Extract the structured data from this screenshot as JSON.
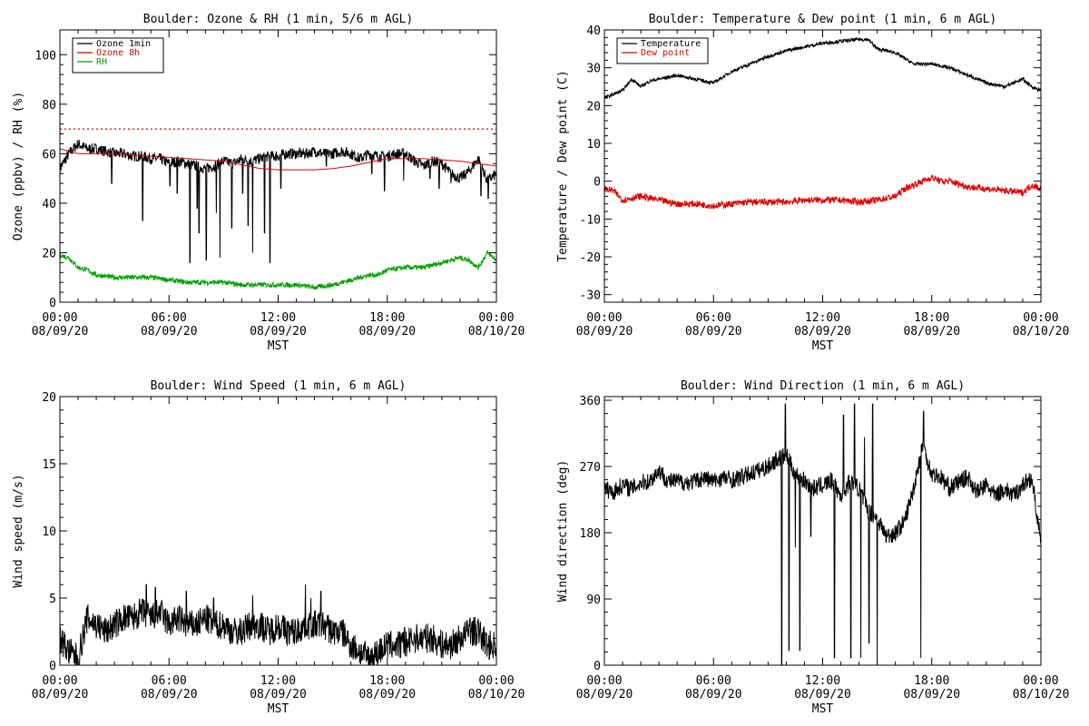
{
  "colors": {
    "black": "#000000",
    "red": "#dd0000",
    "green": "#00a000"
  },
  "x_axis_common": {
    "tick_labels": [
      [
        "00:00",
        "08/09/20"
      ],
      [
        "06:00",
        "08/09/20"
      ],
      [
        "12:00",
        "08/09/20"
      ],
      [
        "18:00",
        "08/09/20"
      ],
      [
        "00:00",
        "08/10/20"
      ]
    ],
    "tick_hours": [
      0,
      6,
      12,
      18,
      24
    ],
    "xlim": [
      0,
      24
    ],
    "xlabel": "MST"
  },
  "chart_data": [
    {
      "id": "ozone-rh",
      "type": "line",
      "title": "Boulder: Ozone & RH (1 min, 5/6 m AGL)",
      "ylabel": "Ozone (ppbv) / RH (%)",
      "xlabel": "MST",
      "ylim": [
        0,
        110
      ],
      "yticks": [
        0,
        20,
        40,
        60,
        80,
        100
      ],
      "legend_position": "top-left",
      "reference_line": {
        "y": 70,
        "style": "dotted",
        "color": "#dd0000"
      },
      "series": [
        {
          "name": "Ozone 1min",
          "color": "#000000",
          "x": [
            0,
            0.5,
            1,
            1.5,
            2,
            2.5,
            3,
            3.5,
            4,
            4.5,
            5,
            5.5,
            6,
            6.5,
            7,
            7.5,
            8,
            8.5,
            9,
            9.5,
            10,
            10.5,
            11,
            11.5,
            12,
            12.5,
            13,
            13.5,
            14,
            14.5,
            15,
            15.5,
            16,
            16.5,
            17,
            17.5,
            18,
            18.5,
            19,
            19.5,
            20,
            20.5,
            21,
            21.5,
            22,
            22.5,
            23,
            23.5,
            24
          ],
          "y": [
            54,
            60,
            64,
            62,
            62,
            61,
            60,
            60,
            59,
            59,
            58,
            58,
            56,
            57,
            56,
            55,
            54,
            55,
            57,
            56,
            58,
            57,
            58,
            59,
            59,
            60,
            60,
            60,
            61,
            60,
            60,
            61,
            60,
            58,
            60,
            59,
            59,
            60,
            60,
            57,
            55,
            57,
            56,
            52,
            50,
            53,
            58,
            49,
            52
          ]
        },
        {
          "name": "Ozone 8h",
          "color": "#dd0000",
          "x": [
            0,
            1,
            2,
            3,
            4,
            5,
            6,
            7,
            8,
            9,
            10,
            11,
            12,
            13,
            14,
            15,
            16,
            17,
            18,
            19,
            20,
            21,
            22,
            23,
            24
          ],
          "y": [
            62,
            60,
            60,
            60,
            59.5,
            59,
            58.5,
            58,
            57.5,
            57,
            55.5,
            54,
            53.5,
            53.5,
            53.5,
            54,
            55,
            56.5,
            58,
            58,
            58,
            57.5,
            57,
            56,
            55
          ]
        },
        {
          "name": "RH",
          "color": "#00a000",
          "x": [
            0,
            0.5,
            1,
            1.5,
            2,
            3,
            4,
            5,
            6,
            7,
            8,
            9,
            10,
            11,
            12,
            13,
            14,
            15,
            16,
            17,
            17.5,
            18,
            19,
            20,
            21,
            22,
            22.5,
            23,
            23.5,
            24
          ],
          "y": [
            19,
            18,
            14,
            13,
            11,
            10,
            10,
            10,
            9,
            8,
            8,
            8,
            7,
            7,
            7,
            7,
            6,
            7,
            9,
            11,
            11,
            13,
            14,
            14,
            16,
            18,
            17,
            14,
            20,
            17
          ]
        }
      ],
      "spikes": [
        {
          "name": "Ozone 1min",
          "x": [
            2.85,
            4.55,
            6.05,
            6.45,
            7.15,
            7.55,
            7.65,
            8.05,
            8.6,
            8.8,
            9.45,
            10.05,
            10.35,
            10.6,
            11.25,
            11.55,
            12.15,
            14.65,
            17.15,
            17.85,
            18.9,
            20.35,
            20.85,
            21.5,
            23.15,
            23.55
          ],
          "y": [
            48,
            33,
            47,
            44,
            16,
            38,
            28,
            17,
            36,
            18,
            30,
            44,
            31,
            20,
            28,
            16,
            46,
            55,
            52,
            45,
            49,
            50,
            46,
            48,
            43,
            42
          ]
        }
      ]
    },
    {
      "id": "temp-dew",
      "type": "line",
      "title": "Boulder: Temperature & Dew point (1 min, 6 m AGL)",
      "ylabel": "Temperature / Dew point (C)",
      "xlabel": "MST",
      "ylim": [
        -32,
        40
      ],
      "yticks": [
        -30,
        -20,
        -10,
        0,
        10,
        20,
        30,
        40
      ],
      "legend_position": "top-left",
      "series": [
        {
          "name": "Temperature",
          "color": "#000000",
          "x": [
            0,
            0.5,
            1,
            1.5,
            2,
            2.5,
            3,
            4,
            5,
            6,
            7,
            8,
            9,
            10,
            11,
            12,
            13,
            14,
            14.5,
            15,
            16,
            17,
            18,
            19,
            20,
            21,
            22,
            22.5,
            23,
            23.5,
            24
          ],
          "y": [
            22,
            23,
            24,
            27,
            25,
            26.5,
            27,
            28,
            27,
            26,
            29,
            31,
            33,
            34.5,
            35.5,
            36.5,
            37,
            37.5,
            37.5,
            35,
            34,
            31,
            31,
            30,
            28,
            26,
            25,
            26,
            27,
            25,
            24
          ]
        },
        {
          "name": "Dew point",
          "color": "#dd0000",
          "x": [
            0,
            0.5,
            1,
            2,
            3,
            4,
            5,
            6,
            7,
            8,
            9,
            10,
            11,
            12,
            13,
            14,
            15,
            16,
            16.5,
            17,
            17.5,
            18,
            18.5,
            19,
            20,
            21,
            22,
            23,
            23.5,
            24
          ],
          "y": [
            -2,
            -2.5,
            -5,
            -4,
            -5,
            -6,
            -6,
            -6.5,
            -6,
            -5.5,
            -5.5,
            -5.5,
            -5,
            -5,
            -5,
            -5.5,
            -5,
            -4,
            -2,
            -1,
            0,
            1,
            0,
            0,
            -1.5,
            -2,
            -2.5,
            -3,
            -1,
            -2
          ]
        }
      ]
    },
    {
      "id": "wind-speed",
      "type": "line",
      "title": "Boulder: Wind Speed (1 min, 6 m AGL)",
      "ylabel": "Wind speed (m/s)",
      "xlabel": "MST",
      "ylim": [
        0,
        20
      ],
      "yticks": [
        0,
        5,
        10,
        15,
        20
      ],
      "series": [
        {
          "name": "",
          "color": "#000000",
          "x": [
            0,
            0.5,
            1,
            1.25,
            1.5,
            2,
            2.5,
            3,
            3.5,
            4,
            4.5,
            5,
            5.5,
            6,
            6.5,
            7,
            7.5,
            8,
            8.5,
            9,
            9.5,
            10,
            10.5,
            11,
            11.5,
            12,
            12.5,
            13,
            13.5,
            14,
            14.5,
            15,
            15.5,
            16,
            16.5,
            17,
            17.5,
            18,
            18.5,
            19,
            19.5,
            20,
            20.5,
            21,
            21.5,
            22,
            22.5,
            23,
            23.5,
            24
          ],
          "y": [
            2,
            1,
            0.5,
            2,
            3.5,
            3,
            2.5,
            3,
            3.5,
            3.5,
            4,
            3.5,
            4,
            3,
            3.5,
            3,
            3,
            3.5,
            3,
            3,
            2.5,
            2.5,
            3,
            3,
            2.5,
            3,
            2.5,
            2.5,
            3,
            3,
            3,
            2.5,
            2.5,
            1.5,
            1,
            0.5,
            1,
            1.5,
            1.5,
            1.5,
            2,
            2,
            2,
            1.5,
            1.5,
            2,
            2.5,
            2.5,
            1.5,
            1.5
          ]
        }
      ],
      "spikes": [
        {
          "name": "wind speed",
          "x": [
            1.05,
            4.75,
            5.25,
            6.95,
            8.45,
            10.6,
            13.5,
            13.8,
            14.35,
            17.5,
            18.95,
            22.55
          ],
          "y": [
            0,
            6,
            5.8,
            5.5,
            5,
            5.2,
            6,
            5,
            5.5,
            0.2,
            2.8,
            3.5
          ]
        }
      ]
    },
    {
      "id": "wind-direction",
      "type": "line",
      "title": "Boulder: Wind Direction (1 min, 6 m AGL)",
      "ylabel": "Wind direction (deg)",
      "xlabel": "MST",
      "ylim": [
        0,
        365
      ],
      "yticks": [
        0,
        90,
        180,
        270,
        360
      ],
      "series": [
        {
          "name": "",
          "color": "#000000",
          "x": [
            0,
            0.5,
            1,
            1.5,
            2,
            2.5,
            3,
            3.5,
            4,
            4.5,
            5,
            5.5,
            6,
            6.5,
            7,
            7.5,
            8,
            8.5,
            9,
            9.5,
            10,
            10.5,
            11,
            11.5,
            12,
            12.5,
            13,
            13.5,
            14,
            14.5,
            15,
            15.5,
            16,
            16.5,
            17,
            17.5,
            18,
            18.5,
            19,
            19.5,
            20,
            20.5,
            21,
            21.5,
            22,
            22.5,
            23,
            23.5,
            24
          ],
          "y": [
            240,
            235,
            245,
            240,
            248,
            250,
            265,
            250,
            250,
            248,
            250,
            255,
            250,
            255,
            252,
            255,
            260,
            265,
            270,
            280,
            285,
            260,
            250,
            240,
            245,
            250,
            230,
            250,
            240,
            210,
            200,
            175,
            180,
            195,
            240,
            300,
            260,
            255,
            240,
            250,
            255,
            235,
            245,
            230,
            240,
            230,
            245,
            255,
            165
          ]
        }
      ],
      "spikes": [
        {
          "name": "wind direction",
          "x": [
            9.75,
            9.95,
            10.15,
            10.5,
            10.75,
            11.35,
            12.65,
            13.15,
            13.55,
            13.75,
            14.1,
            14.3,
            14.55,
            14.75,
            15,
            17.4,
            17.55
          ],
          "y": [
            0,
            355,
            20,
            160,
            20,
            175,
            10,
            340,
            10,
            355,
            10,
            310,
            30,
            355,
            0,
            10,
            345
          ]
        }
      ]
    }
  ]
}
